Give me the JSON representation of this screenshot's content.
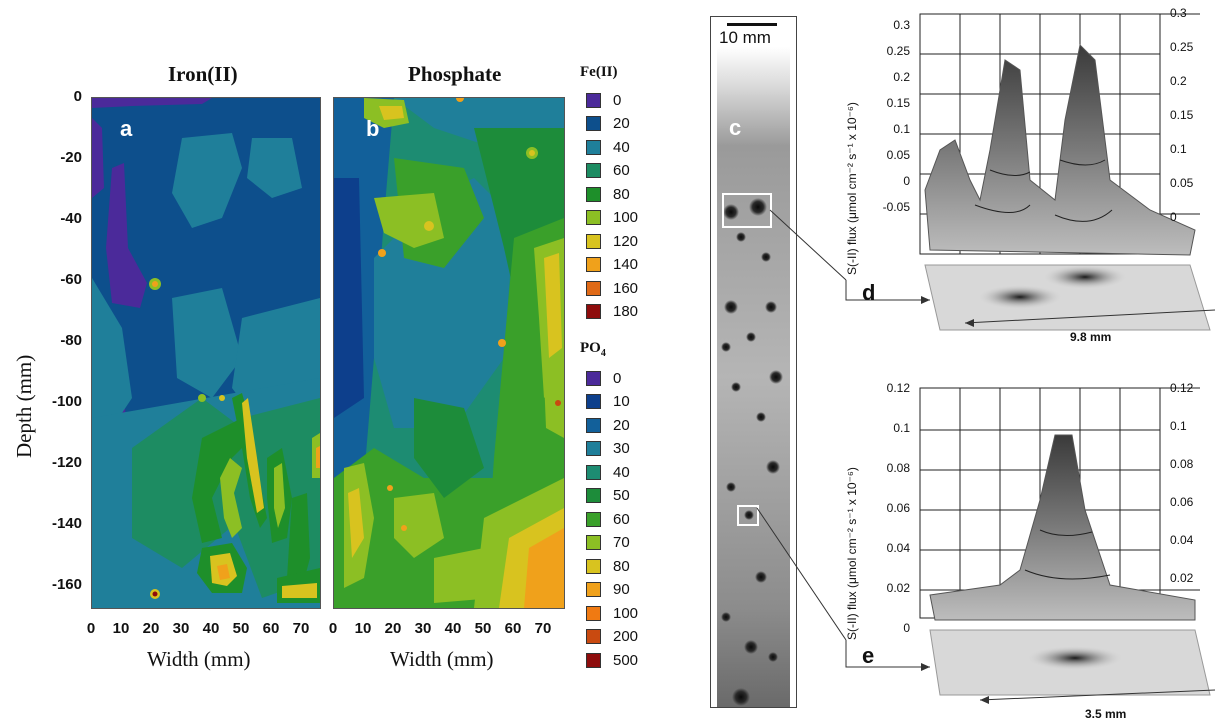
{
  "panel_a": {
    "title": "Iron(II)",
    "letter": "a"
  },
  "panel_b": {
    "title": "Phosphate",
    "letter": "b"
  },
  "panel_c": {
    "letter": "c",
    "scale_label": "10 mm"
  },
  "panel_d": {
    "letter": "d",
    "width_label": "9.8 mm",
    "left_ticks": [
      "0.3",
      "0.25",
      "0.2",
      "0.15",
      "0.1",
      "0.05",
      "0",
      "-0.05"
    ],
    "right_ticks": [
      "0.3",
      "0.25",
      "0.2",
      "0.15",
      "0.1",
      "0.05",
      "0"
    ]
  },
  "panel_e": {
    "letter": "e",
    "width_label": "3.5 mm",
    "left_ticks": [
      "0.12",
      "0.1",
      "0.08",
      "0.06",
      "0.04",
      "0.02",
      "0"
    ],
    "right_ticks": [
      "0.12",
      "0.1",
      "0.08",
      "0.06",
      "0.04",
      "0.02"
    ]
  },
  "flux_axis_label_d": "S(-II) flux (μmol cm⁻² s⁻¹ x 10⁻⁶)",
  "flux_axis_label_e": "S(-II) flux (μmol cm⁻² s⁻¹ x 10⁻⁶)",
  "depth_axis": {
    "label": "Depth (mm)",
    "ticks": [
      "0",
      "-20",
      "-40",
      "-60",
      "-80",
      "-100",
      "-120",
      "-140",
      "-160"
    ]
  },
  "width_axis": {
    "label": "Width (mm)",
    "ticks": [
      "0",
      "10",
      "20",
      "30",
      "40",
      "50",
      "60",
      "70"
    ]
  },
  "legend_fe": {
    "title": "Fe(II)",
    "items": [
      {
        "label": "0",
        "color": "#4b2a9a"
      },
      {
        "label": "20",
        "color": "#0d4f8c"
      },
      {
        "label": "40",
        "color": "#1f7f9a"
      },
      {
        "label": "60",
        "color": "#1d8c62"
      },
      {
        "label": "80",
        "color": "#1e8f2a"
      },
      {
        "label": "100",
        "color": "#8cbf24"
      },
      {
        "label": "120",
        "color": "#d8c31f"
      },
      {
        "label": "140",
        "color": "#f0a11b"
      },
      {
        "label": "160",
        "color": "#e06a17"
      },
      {
        "label": "180",
        "color": "#8e0c0c"
      }
    ]
  },
  "legend_po4": {
    "title": "PO",
    "title_sub": "4",
    "items": [
      {
        "label": "0",
        "color": "#4b2a9a"
      },
      {
        "label": "10",
        "color": "#0d3f8c"
      },
      {
        "label": "20",
        "color": "#12609a"
      },
      {
        "label": "30",
        "color": "#1f7f9a"
      },
      {
        "label": "40",
        "color": "#1d8c72"
      },
      {
        "label": "50",
        "color": "#1d8c3a"
      },
      {
        "label": "60",
        "color": "#3aa02a"
      },
      {
        "label": "70",
        "color": "#8cbf24"
      },
      {
        "label": "80",
        "color": "#d8c31f"
      },
      {
        "label": "90",
        "color": "#f0a11b"
      },
      {
        "label": "100",
        "color": "#f07a12"
      },
      {
        "label": "200",
        "color": "#c94a10"
      },
      {
        "label": "500",
        "color": "#8e0c0c"
      }
    ]
  }
}
